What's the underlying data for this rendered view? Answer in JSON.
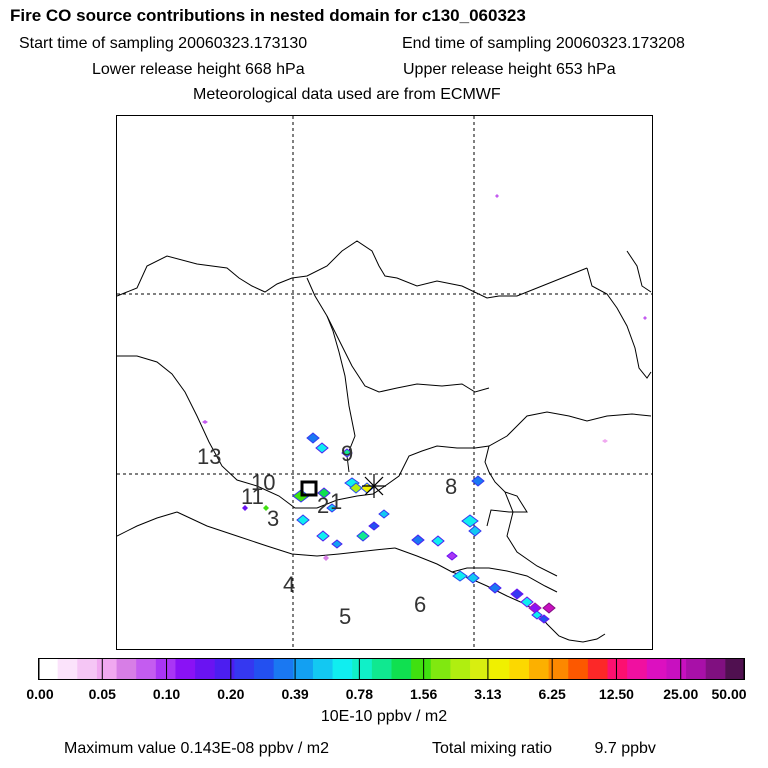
{
  "title": "Fire CO source contributions in nested domain for c130_060323",
  "header": {
    "start_time": "Start time of sampling 20060323.173130",
    "end_time": "End time of sampling 20060323.173208",
    "lower_height": "Lower release height  668 hPa",
    "upper_height": "Upper release height  653 hPa",
    "met_data": "Meteorological data used are from ECMWF"
  },
  "map": {
    "trajectory_labels": [
      "1",
      "2",
      "3",
      "4",
      "5",
      "6",
      "8",
      "9",
      "10",
      "11",
      "13"
    ],
    "release_marker": "release-box-icon",
    "receptor_marker": "asterisk-icon"
  },
  "colorbar": {
    "ticks": [
      "0.00",
      "0.05",
      "0.10",
      "0.20",
      "0.39",
      "0.78",
      "1.56",
      "3.13",
      "6.25",
      "12.50",
      "25.00",
      "50.00"
    ],
    "colors": [
      "#ffffff",
      "#fbe3fb",
      "#f5c6f5",
      "#f0a8f0",
      "#d77ee6",
      "#c45cf0",
      "#a935f5",
      "#8a12f5",
      "#6a13f2",
      "#4c1ef0",
      "#3538f0",
      "#2350f0",
      "#1a78f2",
      "#13a0f2",
      "#13c8f2",
      "#10eef0",
      "#10f0c8",
      "#10e890",
      "#10e050",
      "#40e010",
      "#80e810",
      "#b0ee10",
      "#d8ee10",
      "#f0f000",
      "#fcd800",
      "#fcb000",
      "#fc8800",
      "#fc5800",
      "#fc2828",
      "#fc1070",
      "#f010a0",
      "#dc10c0",
      "#c810c0",
      "#a810a8",
      "#801080",
      "#501050"
    ],
    "units": "10E-10 ppbv / m2"
  },
  "footer": {
    "max_value": "Maximum value  0.143E-08 ppbv / m2",
    "total_label": "Total mixing ratio",
    "total_value": "9.7 ppbv"
  }
}
